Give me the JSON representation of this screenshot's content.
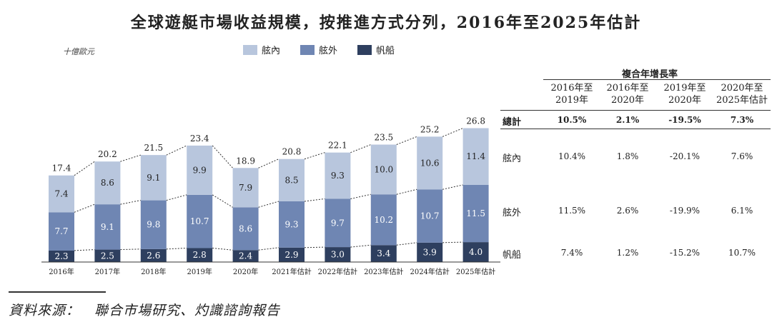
{
  "title": "全球遊艇市場收益規模，按推進方式分列，2016年至2025年估計",
  "unit_label": "十億歐元",
  "legend": [
    {
      "label": "舷內",
      "color": "#b8c6dd"
    },
    {
      "label": "舷外",
      "color": "#6f86b3"
    },
    {
      "label": "帆船",
      "color": "#2e3f5f"
    }
  ],
  "chart_data": {
    "type": "bar",
    "categories": [
      "2016年",
      "2017年",
      "2018年",
      "2019年",
      "2020年",
      "2021年估計",
      "2022年估計",
      "2023年估計",
      "2024年估計",
      "2025年估計"
    ],
    "series": [
      {
        "name": "帆船",
        "values": [
          2.3,
          2.5,
          2.6,
          2.8,
          2.4,
          2.9,
          3.0,
          3.4,
          3.9,
          4.0
        ]
      },
      {
        "name": "舷外",
        "values": [
          7.7,
          9.1,
          9.8,
          10.7,
          8.6,
          9.3,
          9.7,
          10.2,
          10.7,
          11.5
        ]
      },
      {
        "name": "舷內",
        "values": [
          7.4,
          8.6,
          9.1,
          9.9,
          7.9,
          8.5,
          9.3,
          10.0,
          10.6,
          11.4
        ]
      }
    ],
    "totals": [
      17.4,
      20.2,
      21.5,
      23.4,
      18.9,
      20.8,
      22.1,
      23.5,
      25.2,
      26.8
    ],
    "stacked": true,
    "colors": {
      "帆船": "#2e3f5f",
      "舷外": "#6f86b3",
      "舷內": "#b8c6dd"
    }
  },
  "cagr_table": {
    "header": "複合年增長率",
    "columns": [
      "2016年至\n2019年",
      "2016年至\n2020年",
      "2019年至\n2020年",
      "2020年至\n2025年估計"
    ],
    "rows": [
      {
        "label": "總計",
        "values": [
          "10.5%",
          "2.1%",
          "-19.5%",
          "7.3%"
        ],
        "bold": true
      },
      {
        "label": "舷內",
        "values": [
          "10.4%",
          "1.8%",
          "-20.1%",
          "7.6%"
        ],
        "bold": false
      },
      {
        "label": "舷外",
        "values": [
          "11.5%",
          "2.6%",
          "-19.9%",
          "6.1%"
        ],
        "bold": false
      },
      {
        "label": "帆船",
        "values": [
          "7.4%",
          "1.2%",
          "-15.2%",
          "10.7%"
        ],
        "bold": false
      }
    ]
  },
  "source": "資料來源：　聯合市場研究、灼識諮詢報告"
}
